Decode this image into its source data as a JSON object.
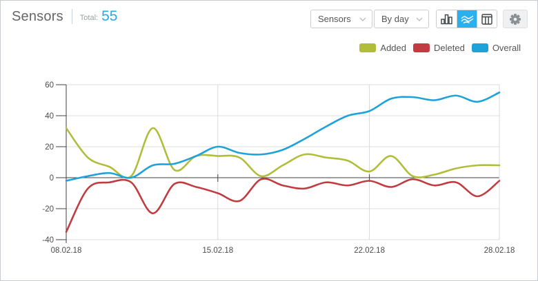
{
  "header": {
    "title": "Sensors",
    "total_label": "Total:",
    "total_value": "55"
  },
  "controls": {
    "series_select_value": "Sensors",
    "period_select_value": "By day",
    "view_buttons": [
      "bar-chart",
      "line-chart",
      "table"
    ],
    "active_view": "line-chart"
  },
  "accent_colors": {
    "active_button_bg": "#29b1ef",
    "total_value_blue": "#2aa9e0"
  },
  "chart_data": {
    "type": "line",
    "days": 21,
    "x_ticks": [
      {
        "label": "08.02.18",
        "day": 0
      },
      {
        "label": "15.02.18",
        "day": 7
      },
      {
        "label": "22.02.18",
        "day": 14
      },
      {
        "label": "28.02.18",
        "day": 20
      }
    ],
    "ylim": [
      -40,
      60
    ],
    "yticks": [
      60,
      40,
      20,
      0,
      -20,
      -40
    ],
    "grid": true,
    "legend_position": "top-right",
    "series": [
      {
        "name": "Added",
        "color": "#afbd39",
        "values": [
          32,
          13,
          7,
          1,
          32,
          5,
          14,
          14,
          13,
          1,
          8,
          15,
          13,
          11,
          4,
          14,
          1,
          2,
          6,
          8,
          8
        ]
      },
      {
        "name": "Deleted",
        "color": "#c23b40",
        "values": [
          -35,
          -7,
          -3,
          -3,
          -23,
          -4,
          -6,
          -10,
          -15,
          -1,
          -5,
          -7,
          -3,
          -5,
          -2,
          -6,
          -1,
          -5,
          -3,
          -12,
          -2
        ]
      },
      {
        "name": "Overall",
        "color": "#1da2da",
        "values": [
          -2,
          1,
          3,
          0,
          8,
          9,
          14,
          20,
          16,
          15,
          18,
          25,
          33,
          40,
          43,
          51,
          52,
          50,
          53,
          49,
          55
        ]
      }
    ]
  }
}
